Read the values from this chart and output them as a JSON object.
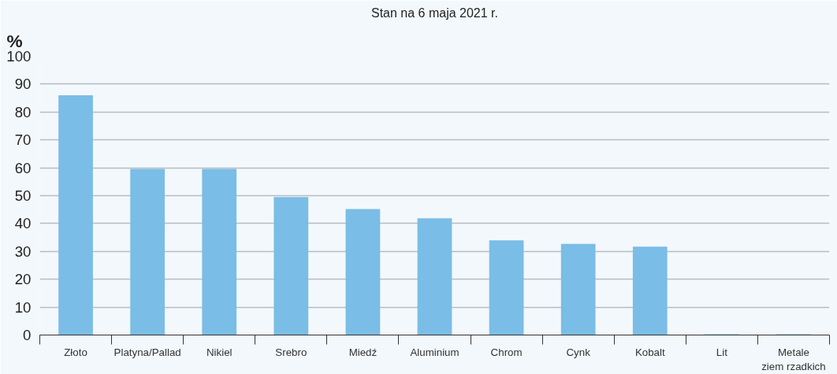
{
  "chart_data": {
    "type": "bar",
    "subtitle": "Stan na 6 maja 2021 r.",
    "ylabel": "%",
    "categories": [
      "Złoto",
      "Platyna/Pallad",
      "Nikiel",
      "Srebro",
      "Miedź",
      "Aluminium",
      "Chrom",
      "Cynk",
      "Kobalt",
      "Lit",
      "Metale\nziem rzadkich"
    ],
    "values": [
      86.0,
      59.6,
      59.6,
      49.5,
      45.2,
      41.9,
      34.0,
      32.7,
      31.7,
      0.3,
      0.3
    ],
    "color": "#7abde6",
    "ylim": [
      0,
      100
    ],
    "yticks": [
      0,
      10,
      20,
      30,
      40,
      50,
      60,
      70,
      80,
      90,
      100
    ],
    "grid": "y"
  }
}
